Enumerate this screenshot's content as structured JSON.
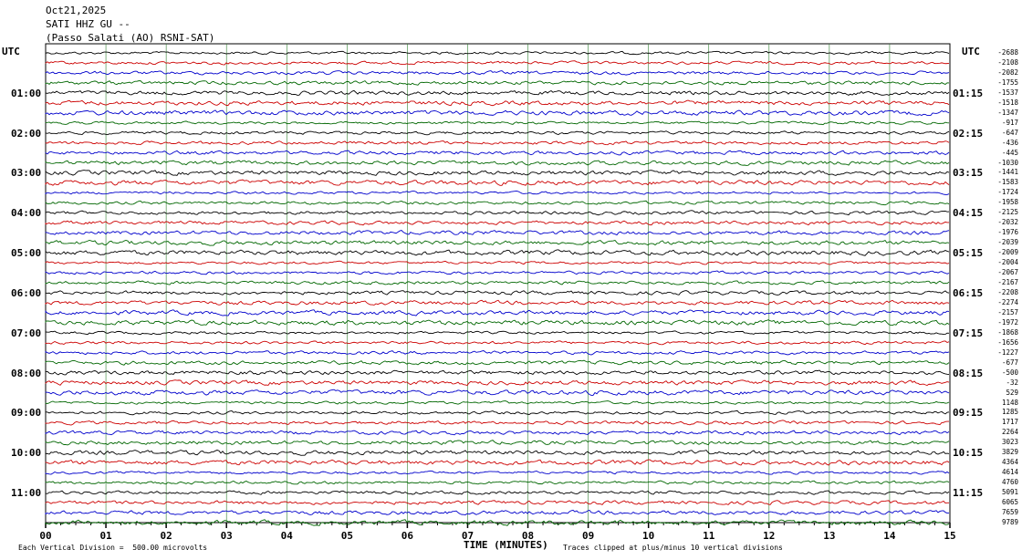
{
  "header": {
    "date": "Oct21,2025",
    "station": "SATI HHZ GU --",
    "location": "(Passo Salati (AO) RSNI-SAT)"
  },
  "chart_data": {
    "type": "line",
    "left_axis_label": "UTC",
    "right_axis_label": "UTC",
    "left_hour_labels": [
      "01:00",
      "02:00",
      "03:00",
      "04:00",
      "05:00",
      "06:00",
      "07:00",
      "08:00",
      "09:00",
      "10:00",
      "11:00"
    ],
    "right_hour_labels": [
      "01:15",
      "02:15",
      "03:15",
      "04:15",
      "05:15",
      "06:15",
      "07:15",
      "08:15",
      "09:15",
      "10:15",
      "11:15"
    ],
    "x_ticks": [
      "00",
      "01",
      "02",
      "03",
      "04",
      "05",
      "06",
      "07",
      "08",
      "09",
      "10",
      "11",
      "12",
      "13",
      "14",
      "15"
    ],
    "xlabel": "TIME (MINUTES)",
    "xlim": [
      0,
      15
    ],
    "trace_offsets": [
      -2688,
      -2108,
      -2082,
      -1755,
      -1537,
      -1518,
      -1347,
      -917,
      -647,
      -436,
      -445,
      -1030,
      -1441,
      -1583,
      -1724,
      -1958,
      -2125,
      -2032,
      -1976,
      -2039,
      -2009,
      -2004,
      -2067,
      -2167,
      -2208,
      -2274,
      -2157,
      -1972,
      -1868,
      -1656,
      -1227,
      -677,
      -500,
      -32,
      529,
      1148,
      1285,
      1717,
      2264,
      3023,
      3829,
      4364,
      4614,
      4760,
      5091,
      6065,
      7659,
      9789
    ],
    "trace_colors": [
      "#000000",
      "#cc0000",
      "#0000cc",
      "#006600"
    ],
    "trace_count": 48
  },
  "footer": {
    "scale_note": "Each Vertical Division =  500.00 microvolts",
    "clip_note": "Traces clipped at plus/minus 10 vertical divisions"
  }
}
